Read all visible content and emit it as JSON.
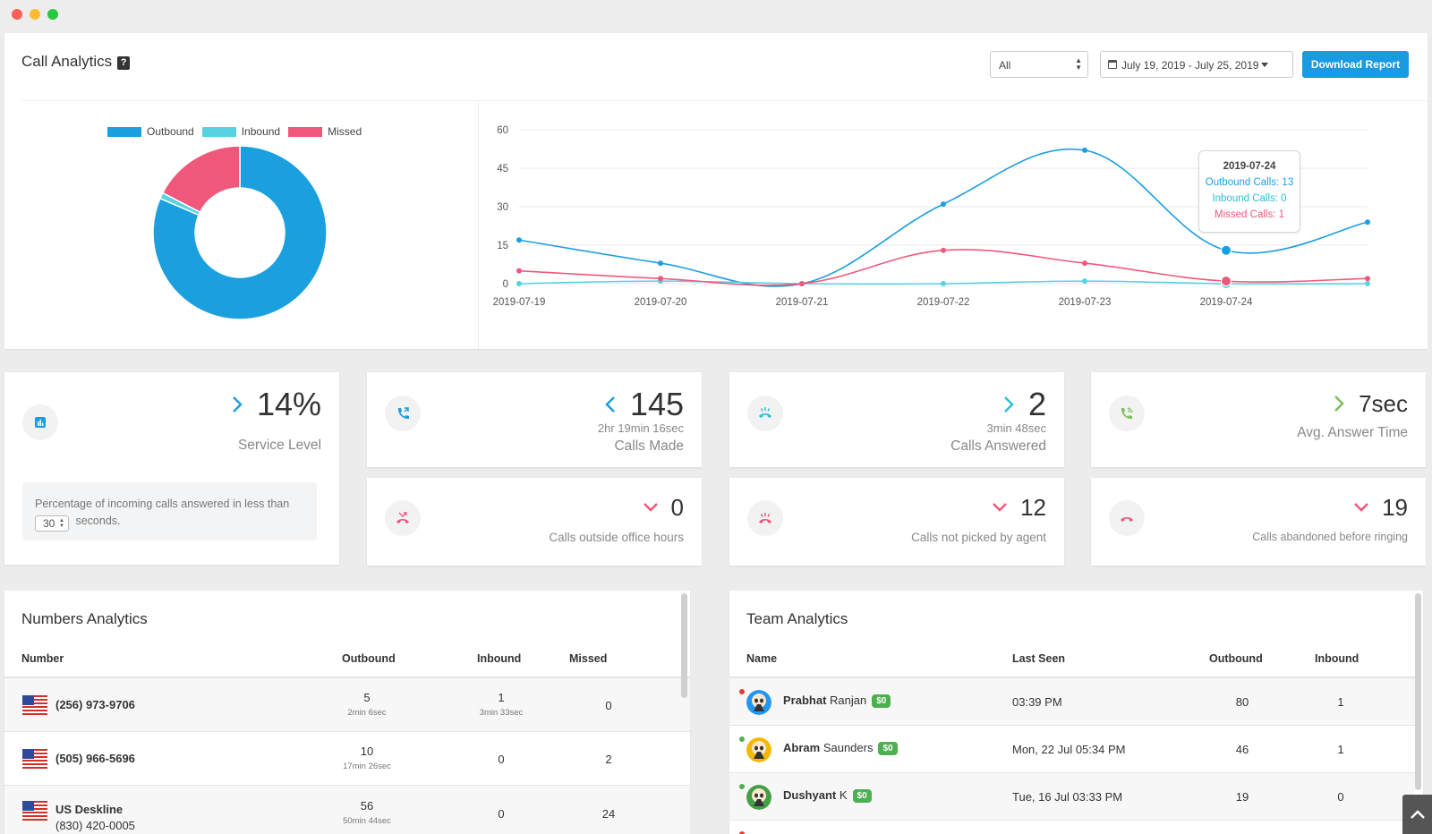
{
  "header": {
    "title": "Call Analytics",
    "help_glyph": "?",
    "filter_value": "All",
    "date_range": "July 19, 2019 - July 25, 2019",
    "download_label": "Download Report"
  },
  "legend": [
    {
      "name": "Outbound",
      "color": "#1a9fdf"
    },
    {
      "name": "Inbound",
      "color": "#56d2e3"
    },
    {
      "name": "Missed",
      "color": "#f0587b"
    }
  ],
  "chart_data": [
    {
      "type": "pie",
      "donut": true,
      "labels": [
        "Outbound",
        "Inbound",
        "Missed"
      ],
      "values": [
        145,
        2,
        31
      ],
      "colors": [
        "#1a9fdf",
        "#56d2e3",
        "#f0587b"
      ]
    },
    {
      "type": "line",
      "x": [
        "2019-07-19",
        "2019-07-20",
        "2019-07-21",
        "2019-07-22",
        "2019-07-23",
        "2019-07-24",
        "2019-07-25"
      ],
      "tick_labels": [
        "2019-07-19",
        "2019-07-20",
        "2019-07-21",
        "2019-07-22",
        "2019-07-23",
        "2019-07-24"
      ],
      "yticks": [
        0,
        15,
        30,
        45,
        60
      ],
      "ylim": [
        0,
        60
      ],
      "grid": true,
      "series": [
        {
          "name": "Outbound Calls",
          "color": "#1a9fdf",
          "values": [
            17,
            8,
            0,
            31,
            52,
            13,
            24
          ]
        },
        {
          "name": "Inbound Calls",
          "color": "#56d2e3",
          "values": [
            0,
            1,
            0,
            0,
            1,
            0,
            0
          ]
        },
        {
          "name": "Missed Calls",
          "color": "#f0587b",
          "values": [
            5,
            2,
            0,
            13,
            8,
            1,
            2
          ]
        }
      ],
      "tooltip": {
        "date": "2019-07-24",
        "lines": [
          "Outbound Calls: 13",
          "Inbound Calls: 0",
          "Missed Calls: 1"
        ]
      }
    }
  ],
  "cards": {
    "service_level": {
      "value": "14%",
      "label": "Service Level",
      "note_before": "Percentage of incoming calls answered in less than",
      "threshold": "30",
      "note_after": "seconds."
    },
    "calls_made": {
      "value": "145",
      "sub": "2hr 19min 16sec",
      "label": "Calls Made"
    },
    "calls_answered": {
      "value": "2",
      "sub": "3min 48sec",
      "label": "Calls Answered"
    },
    "avg_answer": {
      "value": "7sec",
      "label": "Avg. Answer Time"
    },
    "outside_hours": {
      "value": "0",
      "label": "Calls outside office hours"
    },
    "not_picked": {
      "value": "12",
      "label": "Calls not picked by agent"
    },
    "abandoned": {
      "value": "19",
      "label": "Calls abandoned before ringing"
    }
  },
  "numbers_analytics": {
    "title": "Numbers Analytics",
    "headers": [
      "Number",
      "Outbound",
      "Inbound",
      "Missed"
    ],
    "rows": [
      {
        "number": "(256) 973-9706",
        "outbound": "5",
        "outbound_time": "2min 6sec",
        "inbound": "1",
        "inbound_time": "3min 33sec",
        "missed": "0"
      },
      {
        "number": "(505) 966-5696",
        "outbound": "10",
        "outbound_time": "17min 26sec",
        "inbound": "0",
        "inbound_time": "",
        "missed": "2"
      },
      {
        "name": "US Deskline",
        "number": "(830) 420-0005",
        "outbound": "56",
        "outbound_time": "50min 44sec",
        "inbound": "0",
        "inbound_time": "",
        "missed": "24"
      }
    ]
  },
  "team_analytics": {
    "title": "Team Analytics",
    "headers": [
      "Name",
      "Last Seen",
      "Outbound",
      "Inbound"
    ],
    "rows": [
      {
        "first": "Prabhat",
        "last": "Ranjan",
        "badge": "$0",
        "last_seen": "03:39 PM",
        "outbound": "80",
        "inbound": "1",
        "status_color": "#e53935",
        "avatar_color": "#2196f3"
      },
      {
        "first": "Abram",
        "last": "Saunders",
        "badge": "$0",
        "last_seen": "Mon, 22 Jul 05:34 PM",
        "outbound": "46",
        "inbound": "1",
        "status_color": "#4caf50",
        "avatar_color": "#f5b800"
      },
      {
        "first": "Dushyant",
        "last": "K",
        "badge": "$0",
        "last_seen": "Tue, 16 Jul 03:33 PM",
        "outbound": "19",
        "inbound": "0",
        "status_color": "#4caf50",
        "avatar_color": "#43a047"
      }
    ]
  }
}
